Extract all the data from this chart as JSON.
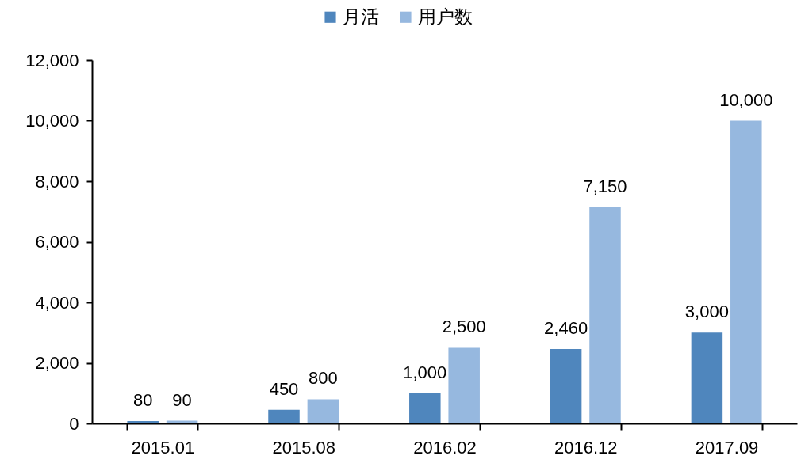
{
  "chart_data": {
    "type": "bar",
    "categories": [
      "2015.01",
      "2015.08",
      "2016.02",
      "2016.12",
      "2017.09"
    ],
    "series": [
      {
        "name": "月活",
        "color": "#4f86bd",
        "values": [
          80,
          450,
          1000,
          2460,
          3000
        ],
        "value_labels": [
          "80",
          "450",
          "1,000",
          "2,460",
          "3,000"
        ]
      },
      {
        "name": "用户数",
        "color": "#96b8df",
        "values": [
          90,
          800,
          2500,
          7150,
          10000
        ],
        "value_labels": [
          "90",
          "800",
          "2,500",
          "7,150",
          "10,000"
        ]
      }
    ],
    "ylim": [
      0,
      12000
    ],
    "yticks": [
      0,
      {
        "value": 2000,
        "label": "2,000"
      },
      {
        "value": 4000,
        "label": "4,000"
      },
      {
        "value": 6000,
        "label": "6,000"
      },
      {
        "value": 8000,
        "label": "8,000"
      },
      {
        "value": 10000,
        "label": "10,000"
      },
      {
        "value": 12000,
        "label": "12,000"
      }
    ],
    "grid": false,
    "legend": "top"
  }
}
